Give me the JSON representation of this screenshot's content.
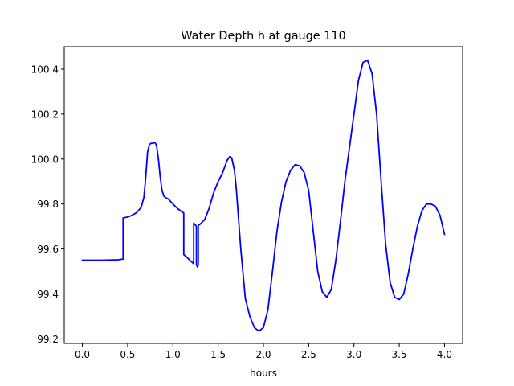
{
  "chart_data": {
    "type": "line",
    "title": "Water Depth h at gauge 110",
    "xlabel": "hours",
    "ylabel": "",
    "xlim": [
      -0.2,
      4.2
    ],
    "ylim": [
      99.18,
      100.5
    ],
    "xticks": [
      0.0,
      0.5,
      1.0,
      1.5,
      2.0,
      2.5,
      3.0,
      3.5,
      4.0
    ],
    "xtick_labels": [
      "0.0",
      "0.5",
      "1.0",
      "1.5",
      "2.0",
      "2.5",
      "3.0",
      "3.5",
      "4.0"
    ],
    "yticks": [
      99.2,
      99.4,
      99.6,
      99.8,
      100.0,
      100.2,
      100.4
    ],
    "ytick_labels": [
      "99.2",
      "99.4",
      "99.6",
      "99.8",
      "100.0",
      "100.2",
      "100.4"
    ],
    "grid": false,
    "series": [
      {
        "color": "#0000ff",
        "x": [
          0.0,
          0.1,
          0.2,
          0.3,
          0.4,
          0.45,
          0.45,
          0.5,
          0.55,
          0.6,
          0.65,
          0.68,
          0.7,
          0.72,
          0.74,
          0.76,
          0.78,
          0.8,
          0.82,
          0.84,
          0.86,
          0.88,
          0.9,
          0.92,
          0.95,
          1.0,
          1.05,
          1.12,
          1.12,
          1.15,
          1.2,
          1.23,
          1.23,
          1.25,
          1.26,
          1.26,
          1.27,
          1.28,
          1.28,
          1.3,
          1.35,
          1.4,
          1.45,
          1.5,
          1.55,
          1.6,
          1.63,
          1.65,
          1.68,
          1.7,
          1.75,
          1.8,
          1.85,
          1.9,
          1.95,
          2.0,
          2.05,
          2.1,
          2.15,
          2.2,
          2.25,
          2.3,
          2.35,
          2.4,
          2.45,
          2.5,
          2.55,
          2.6,
          2.65,
          2.7,
          2.75,
          2.8,
          2.85,
          2.9,
          2.95,
          3.0,
          3.05,
          3.1,
          3.15,
          3.2,
          3.25,
          3.3,
          3.35,
          3.4,
          3.45,
          3.5,
          3.55,
          3.6,
          3.65,
          3.7,
          3.75,
          3.8,
          3.85,
          3.9,
          3.95,
          4.0
        ],
        "y": [
          99.55,
          99.55,
          99.55,
          99.551,
          99.552,
          99.555,
          99.738,
          99.742,
          99.75,
          99.762,
          99.785,
          99.83,
          99.92,
          100.03,
          100.065,
          100.07,
          100.07,
          100.075,
          100.06,
          100.0,
          99.92,
          99.86,
          99.835,
          99.828,
          99.822,
          99.8,
          99.78,
          99.76,
          99.575,
          99.565,
          99.545,
          99.535,
          99.715,
          99.706,
          99.7,
          99.53,
          99.52,
          99.53,
          99.705,
          99.71,
          99.73,
          99.78,
          99.85,
          99.9,
          99.94,
          99.995,
          100.012,
          100.005,
          99.95,
          99.87,
          99.6,
          99.38,
          99.3,
          99.25,
          99.235,
          99.25,
          99.33,
          99.5,
          99.68,
          99.81,
          99.9,
          99.95,
          99.975,
          99.97,
          99.94,
          99.86,
          99.68,
          99.5,
          99.41,
          99.385,
          99.42,
          99.55,
          99.72,
          99.9,
          100.05,
          100.2,
          100.35,
          100.43,
          100.44,
          100.38,
          100.2,
          99.9,
          99.62,
          99.45,
          99.385,
          99.375,
          99.4,
          99.49,
          99.6,
          99.7,
          99.77,
          99.8,
          99.8,
          99.79,
          99.75,
          99.665
        ]
      }
    ]
  }
}
